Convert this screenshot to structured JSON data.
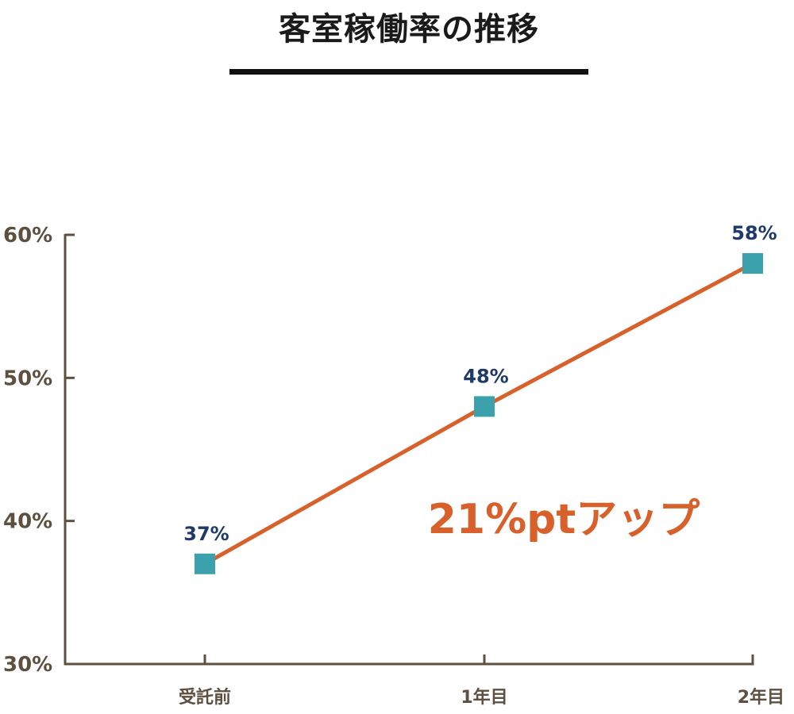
{
  "title": "客室稼働率の推移",
  "chart_data": {
    "type": "line",
    "title": "客室稼働率の推移",
    "categories": [
      "受託前",
      "1年目",
      "2年目"
    ],
    "series": [
      {
        "values": [
          37,
          48,
          58
        ],
        "data_labels": [
          "37%",
          "48%",
          "58%"
        ]
      }
    ],
    "ylim": [
      30,
      60
    ],
    "yticks": [
      30,
      40,
      50,
      60
    ],
    "ytick_labels": [
      "30%",
      "40%",
      "50%",
      "60%"
    ],
    "xlabel": "",
    "ylabel": "",
    "annotation": "21%ptアップ",
    "grid": false,
    "legend": "none",
    "colors": {
      "line": "#d8602a",
      "marker": "#3aa1ad",
      "axis": "#5e5040",
      "data_label": "#1f3a68",
      "annotation": "#d8602a"
    }
  }
}
